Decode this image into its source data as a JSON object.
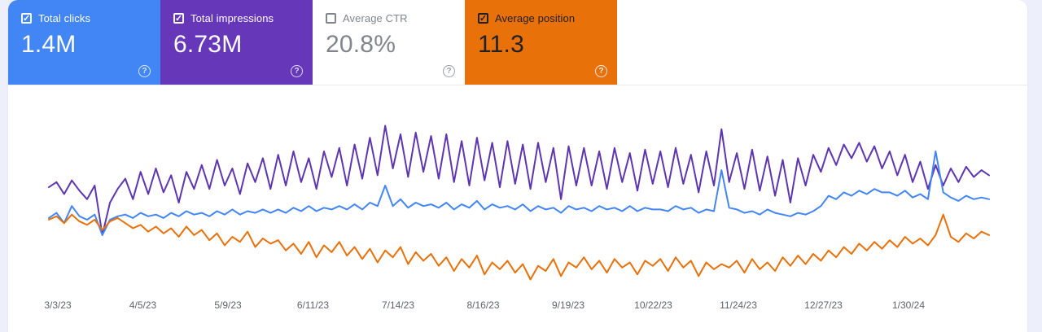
{
  "icons": {
    "check_glyph": "✓",
    "help_glyph": "?"
  },
  "cards": [
    {
      "label": "Total clicks",
      "value": "1.4M",
      "checked": true,
      "bg": "#4285f4",
      "text_color": "#ffffff",
      "checkbox_color": "#ffffff",
      "help_color": "rgba(255,255,255,0.8)"
    },
    {
      "label": "Total impressions",
      "value": "6.73M",
      "checked": true,
      "bg": "#6637b8",
      "text_color": "#ffffff",
      "checkbox_color": "#ffffff",
      "help_color": "rgba(255,255,255,0.8)"
    },
    {
      "label": "Average CTR",
      "value": "20.8%",
      "checked": false,
      "bg": "#ffffff",
      "text_color": "#80868b",
      "checkbox_color": "#80868b",
      "help_color": "#9aa0a6"
    },
    {
      "label": "Average position",
      "value": "11.3",
      "checked": true,
      "bg": "#e8710a",
      "text_color": "#202124",
      "checkbox_color": "#202124",
      "help_color": "rgba(255,255,255,0.85)"
    }
  ],
  "chart_data": {
    "type": "line",
    "title": "",
    "xlabel": "",
    "ylabel": "",
    "grid": false,
    "legend_position": "none",
    "y_axis_labels_visible": false,
    "units": "relative 0-100 scale (y-axis is unlabeled in the screenshot; values estimated from line positions)",
    "x_tick_labels": [
      "3/3/23",
      "4/5/23",
      "5/9/23",
      "6/11/23",
      "7/14/23",
      "8/16/23",
      "9/19/23",
      "10/22/23",
      "11/24/23",
      "12/27/23",
      "1/30/24"
    ],
    "x_range_note": "daily data from 3/3/23 extending ~1 month past last tick (to late Feb 2024)",
    "series": [
      {
        "name": "Total impressions",
        "color": "#5e35b1",
        "values": [
          59,
          62,
          55,
          63,
          57,
          52,
          60,
          31,
          50,
          58,
          64,
          52,
          68,
          55,
          70,
          56,
          66,
          50,
          68,
          58,
          72,
          58,
          75,
          60,
          70,
          55,
          73,
          62,
          76,
          58,
          78,
          60,
          80,
          62,
          76,
          58,
          80,
          65,
          82,
          60,
          84,
          64,
          88,
          66,
          95,
          70,
          90,
          65,
          91,
          68,
          89,
          64,
          90,
          62,
          86,
          60,
          88,
          63,
          85,
          59,
          86,
          61,
          84,
          58,
          85,
          62,
          82,
          52,
          83,
          60,
          82,
          60,
          80,
          58,
          82,
          62,
          79,
          57,
          81,
          61,
          80,
          59,
          82,
          61,
          78,
          56,
          80,
          60,
          93,
          62,
          79,
          58,
          81,
          57,
          77,
          54,
          75,
          50,
          76,
          60,
          78,
          68,
          82,
          72,
          84,
          76,
          85,
          74,
          83,
          70,
          80,
          66,
          78,
          62,
          74,
          58,
          72,
          60,
          70,
          62,
          71,
          65,
          69,
          66
        ]
      },
      {
        "name": "Total clicks",
        "color": "#4285f4",
        "values": [
          41,
          44,
          38,
          48,
          42,
          40,
          43,
          31,
          40,
          42,
          43,
          41,
          44,
          42,
          43,
          41,
          44,
          42,
          45,
          43,
          44,
          42,
          45,
          43,
          46,
          43,
          45,
          44,
          46,
          44,
          46,
          44,
          47,
          45,
          48,
          45,
          47,
          46,
          48,
          46,
          49,
          46,
          50,
          48,
          60,
          48,
          52,
          47,
          50,
          48,
          49,
          47,
          50,
          46,
          49,
          47,
          51,
          46,
          49,
          47,
          48,
          46,
          49,
          45,
          48,
          46,
          47,
          44,
          48,
          46,
          47,
          45,
          48,
          46,
          47,
          45,
          48,
          45,
          47,
          46,
          46,
          45,
          48,
          46,
          47,
          44,
          46,
          45,
          69,
          47,
          46,
          44,
          45,
          43,
          46,
          44,
          43,
          42,
          44,
          43,
          45,
          48,
          54,
          52,
          56,
          54,
          57,
          55,
          58,
          56,
          56,
          54,
          57,
          53,
          55,
          52,
          80,
          56,
          53,
          51,
          54,
          52,
          53,
          52
        ]
      },
      {
        "name": "Average position",
        "color": "#e8710a",
        "values": [
          40,
          42,
          38,
          43,
          39,
          37,
          40,
          34,
          39,
          41,
          38,
          35,
          37,
          33,
          36,
          32,
          35,
          30,
          36,
          31,
          34,
          28,
          32,
          25,
          30,
          27,
          33,
          24,
          29,
          26,
          28,
          22,
          26,
          20,
          27,
          18,
          25,
          21,
          27,
          19,
          24,
          17,
          23,
          15,
          22,
          18,
          24,
          14,
          21,
          16,
          20,
          13,
          18,
          10,
          17,
          12,
          19,
          8,
          15,
          11,
          16,
          9,
          14,
          5,
          13,
          10,
          17,
          7,
          15,
          12,
          18,
          11,
          16,
          9,
          17,
          12,
          15,
          8,
          16,
          13,
          17,
          10,
          18,
          12,
          16,
          7,
          15,
          11,
          14,
          12,
          16,
          9,
          17,
          11,
          15,
          10,
          18,
          13,
          19,
          14,
          20,
          16,
          22,
          18,
          24,
          20,
          26,
          22,
          27,
          23,
          28,
          24,
          30,
          26,
          29,
          25,
          31,
          43,
          30,
          27,
          32,
          29,
          33,
          31
        ]
      }
    ]
  }
}
